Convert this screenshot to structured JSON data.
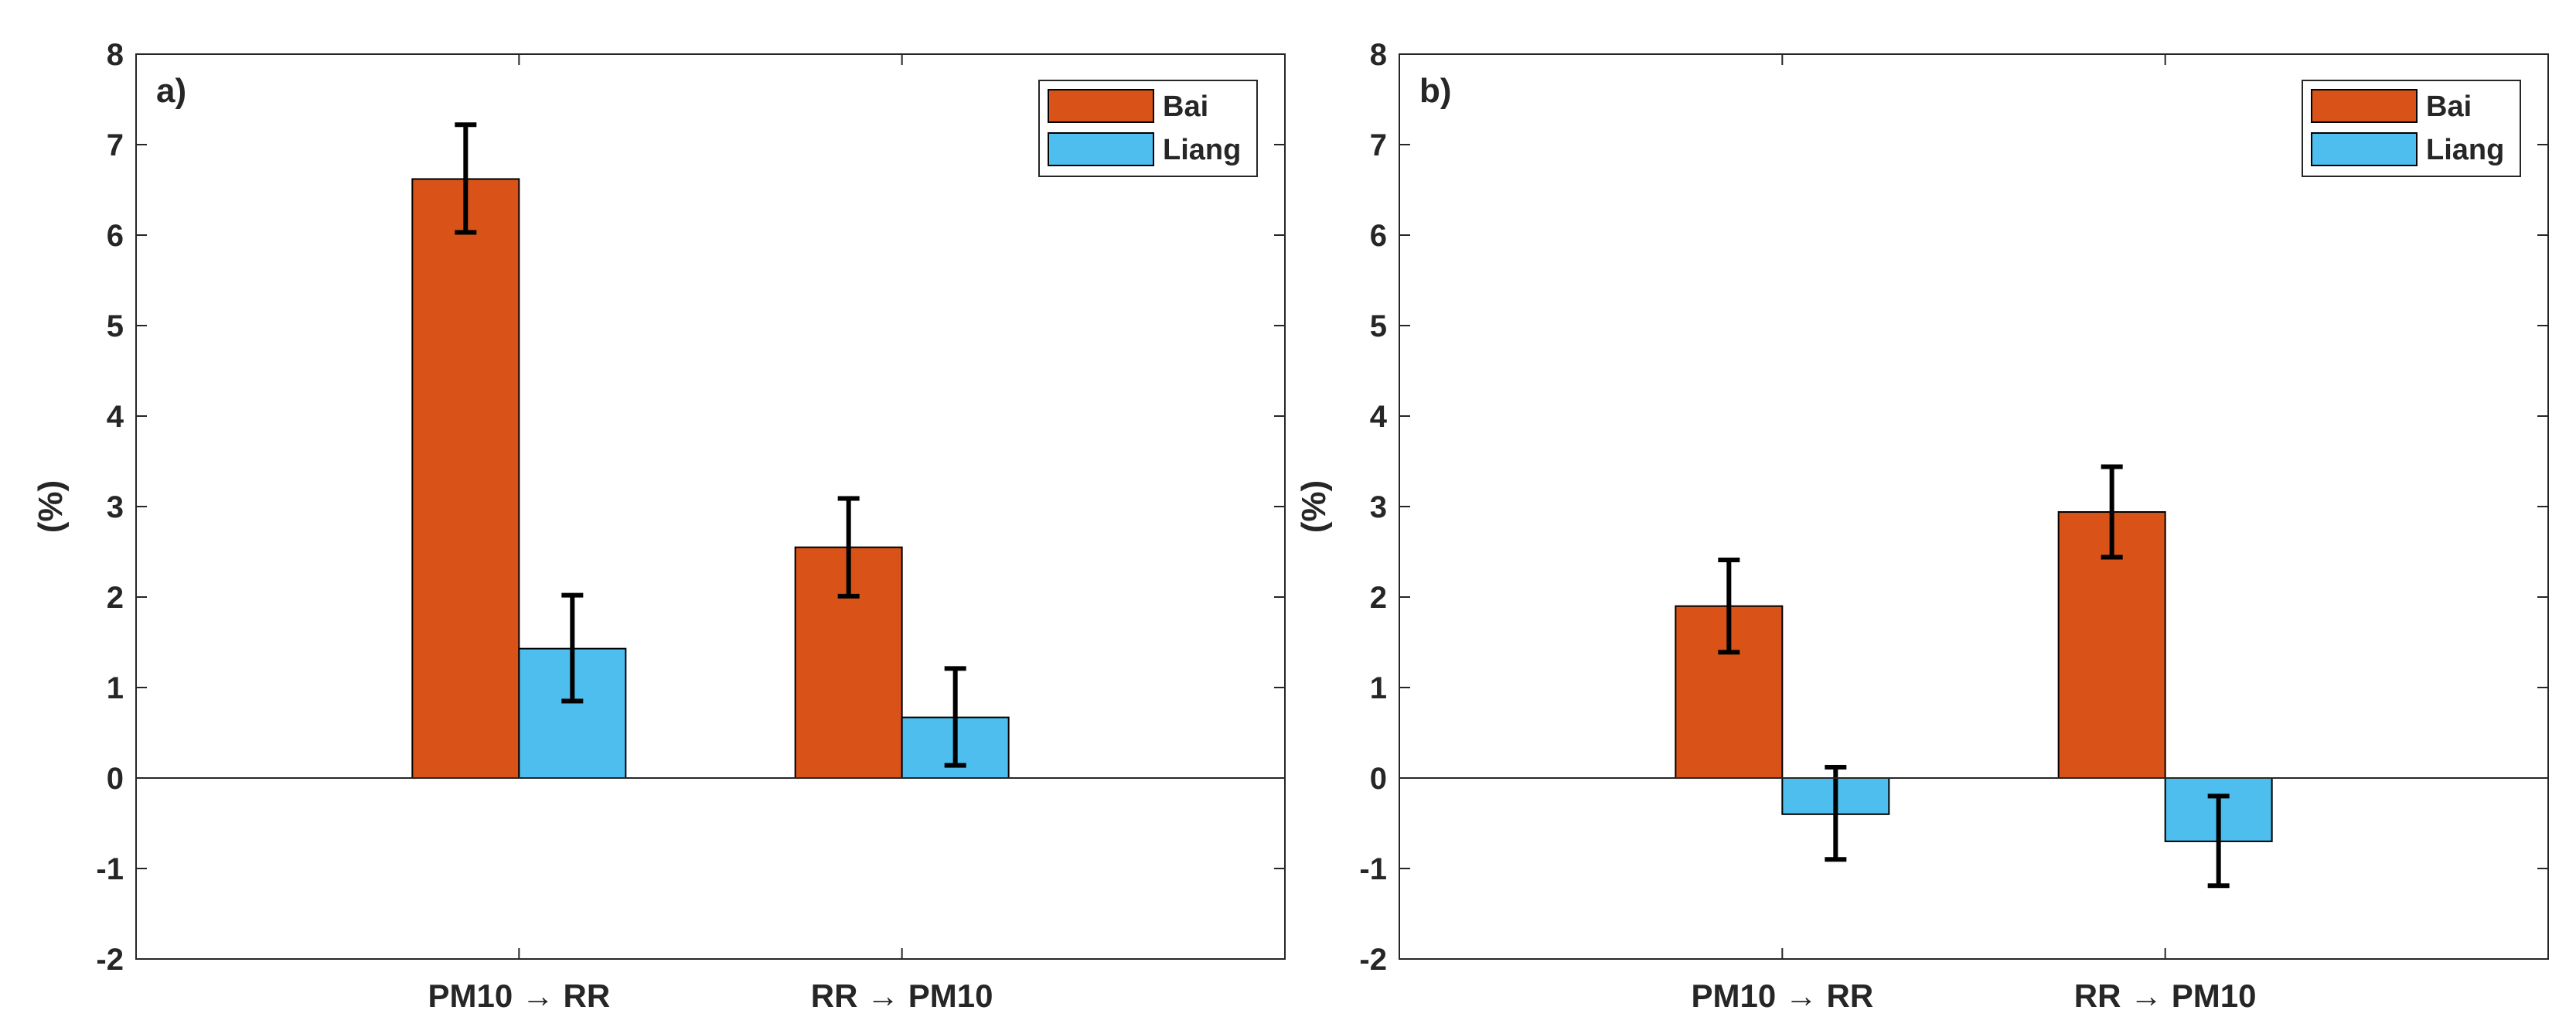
{
  "chart_data": [
    {
      "type": "bar",
      "panel_label": "a)",
      "ylabel": "(%)",
      "xlabel": "",
      "ylim": [
        -2,
        8
      ],
      "yticks": [
        "-2",
        "-1",
        "0",
        "1",
        "2",
        "3",
        "4",
        "5",
        "6",
        "7",
        "8"
      ],
      "categories": [
        "PM10 → RR",
        "RR → PM10"
      ],
      "series": [
        {
          "name": "Bai",
          "color": "#D95319",
          "values": [
            6.62,
            2.55
          ],
          "err_low": [
            6.03,
            2.01
          ],
          "err_high": [
            7.22,
            3.09
          ]
        },
        {
          "name": "Liang",
          "color": "#4DBEEE",
          "values": [
            1.43,
            0.67
          ],
          "err_low": [
            0.85,
            0.14
          ],
          "err_high": [
            2.02,
            1.21
          ]
        }
      ],
      "legend_position": "top-right",
      "grid": false
    },
    {
      "type": "bar",
      "panel_label": "b)",
      "ylabel": "(%)",
      "xlabel": "",
      "ylim": [
        -2,
        8
      ],
      "yticks": [
        "-2",
        "-1",
        "0",
        "1",
        "2",
        "3",
        "4",
        "5",
        "6",
        "7",
        "8"
      ],
      "categories": [
        "PM10 → RR",
        "RR → PM10"
      ],
      "series": [
        {
          "name": "Bai",
          "color": "#D95319",
          "values": [
            1.9,
            2.94
          ],
          "err_low": [
            1.39,
            2.44
          ],
          "err_high": [
            2.41,
            3.44
          ]
        },
        {
          "name": "Liang",
          "color": "#4DBEEE",
          "values": [
            -0.4,
            -0.7
          ],
          "err_low": [
            -0.9,
            -1.19
          ],
          "err_high": [
            0.12,
            -0.2
          ]
        }
      ],
      "legend_position": "top-right",
      "grid": false
    }
  ]
}
